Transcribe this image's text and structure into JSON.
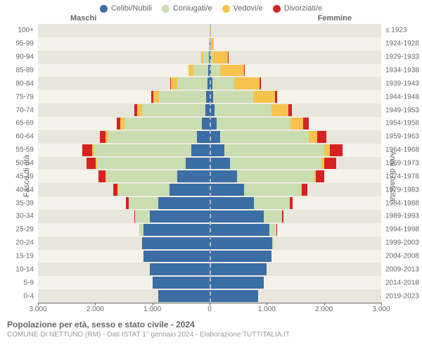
{
  "chart": {
    "type": "population-pyramid",
    "background_color": "#ffffff",
    "grid_color": "#e8e6dc",
    "center_line_color": "#bbbbbb",
    "label_color": "#666666",
    "sublabel_color": "#999999",
    "font_family": "Arial",
    "label_fontsize": 11,
    "tick_fontsize": 10,
    "legend": [
      {
        "label": "Celibi/Nubili",
        "color": "#3a6ea5"
      },
      {
        "label": "Coniugati/e",
        "color": "#c9ddb0"
      },
      {
        "label": "Vedovi/e",
        "color": "#f7c34d"
      },
      {
        "label": "Divorziati/e",
        "color": "#d62222"
      }
    ],
    "header": {
      "male": "Maschi",
      "female": "Femmine"
    },
    "y_axis_left_title": "Fasce di età",
    "y_axis_right_title": "Anni di nascita",
    "x_axis": {
      "max": 3000,
      "ticks": [
        3000,
        2000,
        1000,
        0,
        1000,
        2000,
        3000
      ],
      "tick_labels": [
        "3.000",
        "2.000",
        "1.000",
        "0",
        "1.000",
        "2.000",
        "3.000"
      ]
    },
    "age_groups": [
      "100+",
      "95-99",
      "90-94",
      "85-89",
      "80-84",
      "75-79",
      "70-74",
      "65-69",
      "60-64",
      "55-59",
      "50-54",
      "45-49",
      "40-44",
      "35-39",
      "30-34",
      "25-29",
      "20-24",
      "15-19",
      "10-14",
      "5-9",
      "0-4"
    ],
    "birth_years": [
      "≤ 1923",
      "1924-1928",
      "1929-1933",
      "1934-1938",
      "1939-1943",
      "1944-1948",
      "1949-1953",
      "1954-1958",
      "1959-1963",
      "1964-1968",
      "1969-1973",
      "1974-1978",
      "1979-1983",
      "1984-1988",
      "1989-1993",
      "1994-1998",
      "1999-2003",
      "2004-2008",
      "2009-2013",
      "2014-2018",
      "2019-2023"
    ],
    "series_keys": [
      "single",
      "married",
      "widowed",
      "divorced"
    ],
    "male": [
      {
        "single": 5,
        "married": 0,
        "widowed": 0,
        "divorced": 0
      },
      {
        "single": 5,
        "married": 5,
        "widowed": 8,
        "divorced": 0
      },
      {
        "single": 15,
        "married": 90,
        "widowed": 40,
        "divorced": 5
      },
      {
        "single": 25,
        "married": 260,
        "widowed": 80,
        "divorced": 10
      },
      {
        "single": 40,
        "married": 520,
        "widowed": 120,
        "divorced": 15
      },
      {
        "single": 60,
        "married": 820,
        "widowed": 110,
        "divorced": 25
      },
      {
        "single": 80,
        "married": 1100,
        "widowed": 90,
        "divorced": 40
      },
      {
        "single": 140,
        "married": 1350,
        "widowed": 70,
        "divorced": 60
      },
      {
        "single": 220,
        "married": 1550,
        "widowed": 50,
        "divorced": 100
      },
      {
        "single": 320,
        "married": 1700,
        "widowed": 30,
        "divorced": 170
      },
      {
        "single": 420,
        "married": 1550,
        "widowed": 20,
        "divorced": 160
      },
      {
        "single": 560,
        "married": 1250,
        "widowed": 10,
        "divorced": 120
      },
      {
        "single": 700,
        "married": 900,
        "widowed": 5,
        "divorced": 80
      },
      {
        "single": 900,
        "married": 520,
        "widowed": 0,
        "divorced": 40
      },
      {
        "single": 1050,
        "married": 250,
        "widowed": 0,
        "divorced": 15
      },
      {
        "single": 1150,
        "married": 80,
        "widowed": 0,
        "divorced": 5
      },
      {
        "single": 1180,
        "married": 10,
        "widowed": 0,
        "divorced": 0
      },
      {
        "single": 1150,
        "married": 0,
        "widowed": 0,
        "divorced": 0
      },
      {
        "single": 1050,
        "married": 0,
        "widowed": 0,
        "divorced": 0
      },
      {
        "single": 1000,
        "married": 0,
        "widowed": 0,
        "divorced": 0
      },
      {
        "single": 900,
        "married": 0,
        "widowed": 0,
        "divorced": 0
      }
    ],
    "female": [
      {
        "single": 5,
        "married": 0,
        "widowed": 15,
        "divorced": 0
      },
      {
        "single": 10,
        "married": 0,
        "widowed": 60,
        "divorced": 0
      },
      {
        "single": 20,
        "married": 30,
        "widowed": 270,
        "divorced": 5
      },
      {
        "single": 30,
        "married": 150,
        "widowed": 420,
        "divorced": 10
      },
      {
        "single": 45,
        "married": 380,
        "widowed": 450,
        "divorced": 20
      },
      {
        "single": 60,
        "married": 700,
        "widowed": 380,
        "divorced": 35
      },
      {
        "single": 80,
        "married": 1000,
        "widowed": 300,
        "divorced": 60
      },
      {
        "single": 120,
        "married": 1300,
        "widowed": 220,
        "divorced": 100
      },
      {
        "single": 180,
        "married": 1550,
        "widowed": 150,
        "divorced": 160
      },
      {
        "single": 260,
        "married": 1750,
        "widowed": 90,
        "divorced": 220
      },
      {
        "single": 360,
        "married": 1600,
        "widowed": 50,
        "divorced": 200
      },
      {
        "single": 480,
        "married": 1350,
        "widowed": 25,
        "divorced": 150
      },
      {
        "single": 600,
        "married": 1000,
        "widowed": 10,
        "divorced": 100
      },
      {
        "single": 780,
        "married": 620,
        "widowed": 5,
        "divorced": 50
      },
      {
        "single": 950,
        "married": 320,
        "widowed": 0,
        "divorced": 20
      },
      {
        "single": 1050,
        "married": 120,
        "widowed": 0,
        "divorced": 8
      },
      {
        "single": 1100,
        "married": 20,
        "widowed": 0,
        "divorced": 0
      },
      {
        "single": 1080,
        "married": 0,
        "widowed": 0,
        "divorced": 0
      },
      {
        "single": 1000,
        "married": 0,
        "widowed": 0,
        "divorced": 0
      },
      {
        "single": 950,
        "married": 0,
        "widowed": 0,
        "divorced": 0
      },
      {
        "single": 850,
        "married": 0,
        "widowed": 0,
        "divorced": 0
      }
    ],
    "footer": {
      "title": "Popolazione per età, sesso e stato civile - 2024",
      "sub": "COMUNE DI NETTUNO (RM) - Dati ISTAT 1° gennaio 2024 - Elaborazione TUTTITALIA.IT"
    }
  }
}
